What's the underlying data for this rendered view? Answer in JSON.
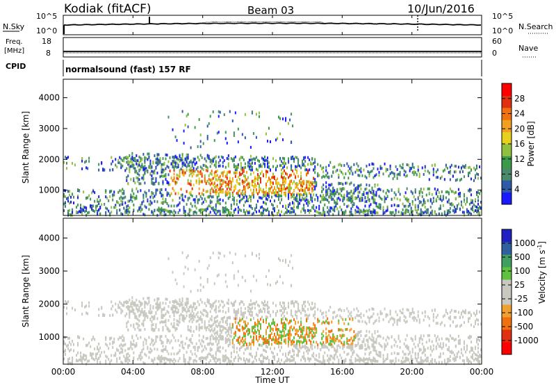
{
  "header": {
    "station": "Kodiak (fitACF)",
    "beam": "Beam 03",
    "date": "10/Jun/2016"
  },
  "panels": {
    "nsky_label": "N.Sky",
    "nsky_ticks": [
      "10^5",
      "10^0"
    ],
    "nsearch_label": "N.Search",
    "nsearch_ticks": [
      "10^5",
      "10^0"
    ],
    "freq_label_line1": "Freq.",
    "freq_label_line2": "[MHz]",
    "freq_ticks": [
      "18",
      "8"
    ],
    "nave_label": "Nave",
    "nave_ticks": [
      "60",
      "0"
    ],
    "cpid_label": "CPID",
    "cpid_text": "normalsound (fast) 157 RF"
  },
  "chart_data": [
    {
      "type": "heatmap",
      "panel": "power",
      "ylabel": "Slant Range [km]",
      "xlabel": "",
      "ylim": [
        180,
        4600
      ],
      "yticks": [
        "1000",
        "2000",
        "3000",
        "4000"
      ],
      "colorbar_label": "Power [dB]",
      "colorbar_ticks": [
        "4",
        "8",
        "12",
        "16",
        "20",
        "24",
        "28"
      ],
      "colorbar_colors": [
        "#1a1aff",
        "#2e5aa8",
        "#4a8a6a",
        "#3a9a4a",
        "#90c040",
        "#e8d020",
        "#f0a020",
        "#f07010",
        "#e03010",
        "#ff0000"
      ]
    },
    {
      "type": "heatmap",
      "panel": "velocity",
      "ylabel": "Slant Range [km]",
      "xlabel": "Time UT",
      "ylim": [
        180,
        4600
      ],
      "yticks": [
        "1000",
        "2000",
        "3000",
        "4000"
      ],
      "xticks": [
        "00:00",
        "04:00",
        "08:00",
        "12:00",
        "16:00",
        "20:00",
        "00:00"
      ],
      "colorbar_label": "Velocity [m s",
      "colorbar_label_sup": "-1",
      "colorbar_label_end": "]",
      "colorbar_ticks": [
        "1000",
        "500",
        "100",
        "25",
        "-25",
        "-100",
        "-500",
        "-1000"
      ],
      "colorbar_colors": [
        "#2020c0",
        "#3060a0",
        "#40a060",
        "#60c040",
        "#c8c8c0",
        "#c8c8c0",
        "#f0a030",
        "#f07010",
        "#e03010",
        "#ff0000"
      ]
    }
  ]
}
